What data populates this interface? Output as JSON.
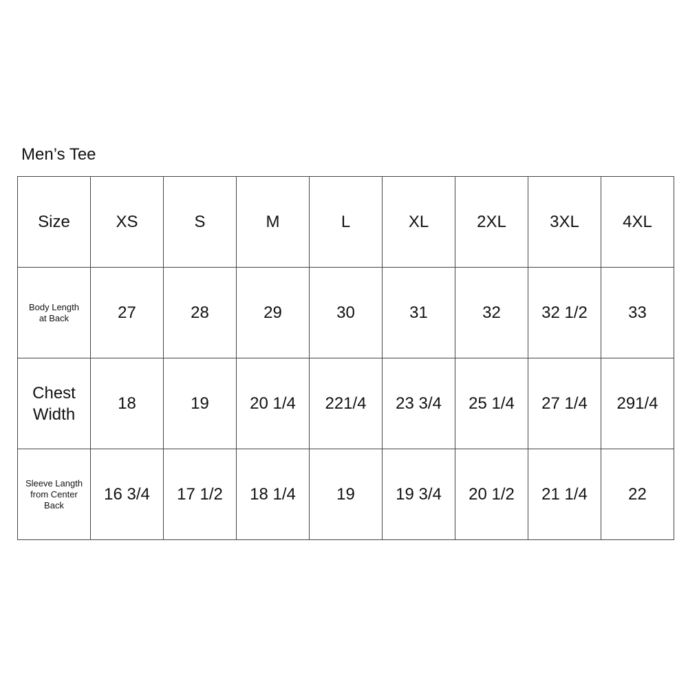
{
  "title": "Men’s Tee",
  "table": {
    "header": {
      "label": "Size",
      "values": [
        "XS",
        "S",
        "M",
        "L",
        "XL",
        "2XL",
        "3XL",
        "4XL"
      ]
    },
    "rows": [
      {
        "label_lines": [
          "Body Length",
          "at Back"
        ],
        "style": "small",
        "values": [
          "27",
          "28",
          "29",
          "30",
          "31",
          "32",
          "32 1/2",
          "33"
        ]
      },
      {
        "label_lines": [
          "Chest",
          "Width"
        ],
        "style": "big",
        "values": [
          "18",
          "19",
          "20 1/4",
          "221/4",
          "23 3/4",
          "25 1/4",
          "27 1/4",
          "291/4"
        ]
      },
      {
        "label_lines": [
          "Sleeve Langth",
          "from Center",
          "Back"
        ],
        "style": "small",
        "values": [
          "16 3/4",
          "17 1/2",
          "18 1/4",
          "19",
          "19 3/4",
          "20 1/2",
          "21 1/4",
          "22"
        ]
      }
    ]
  }
}
